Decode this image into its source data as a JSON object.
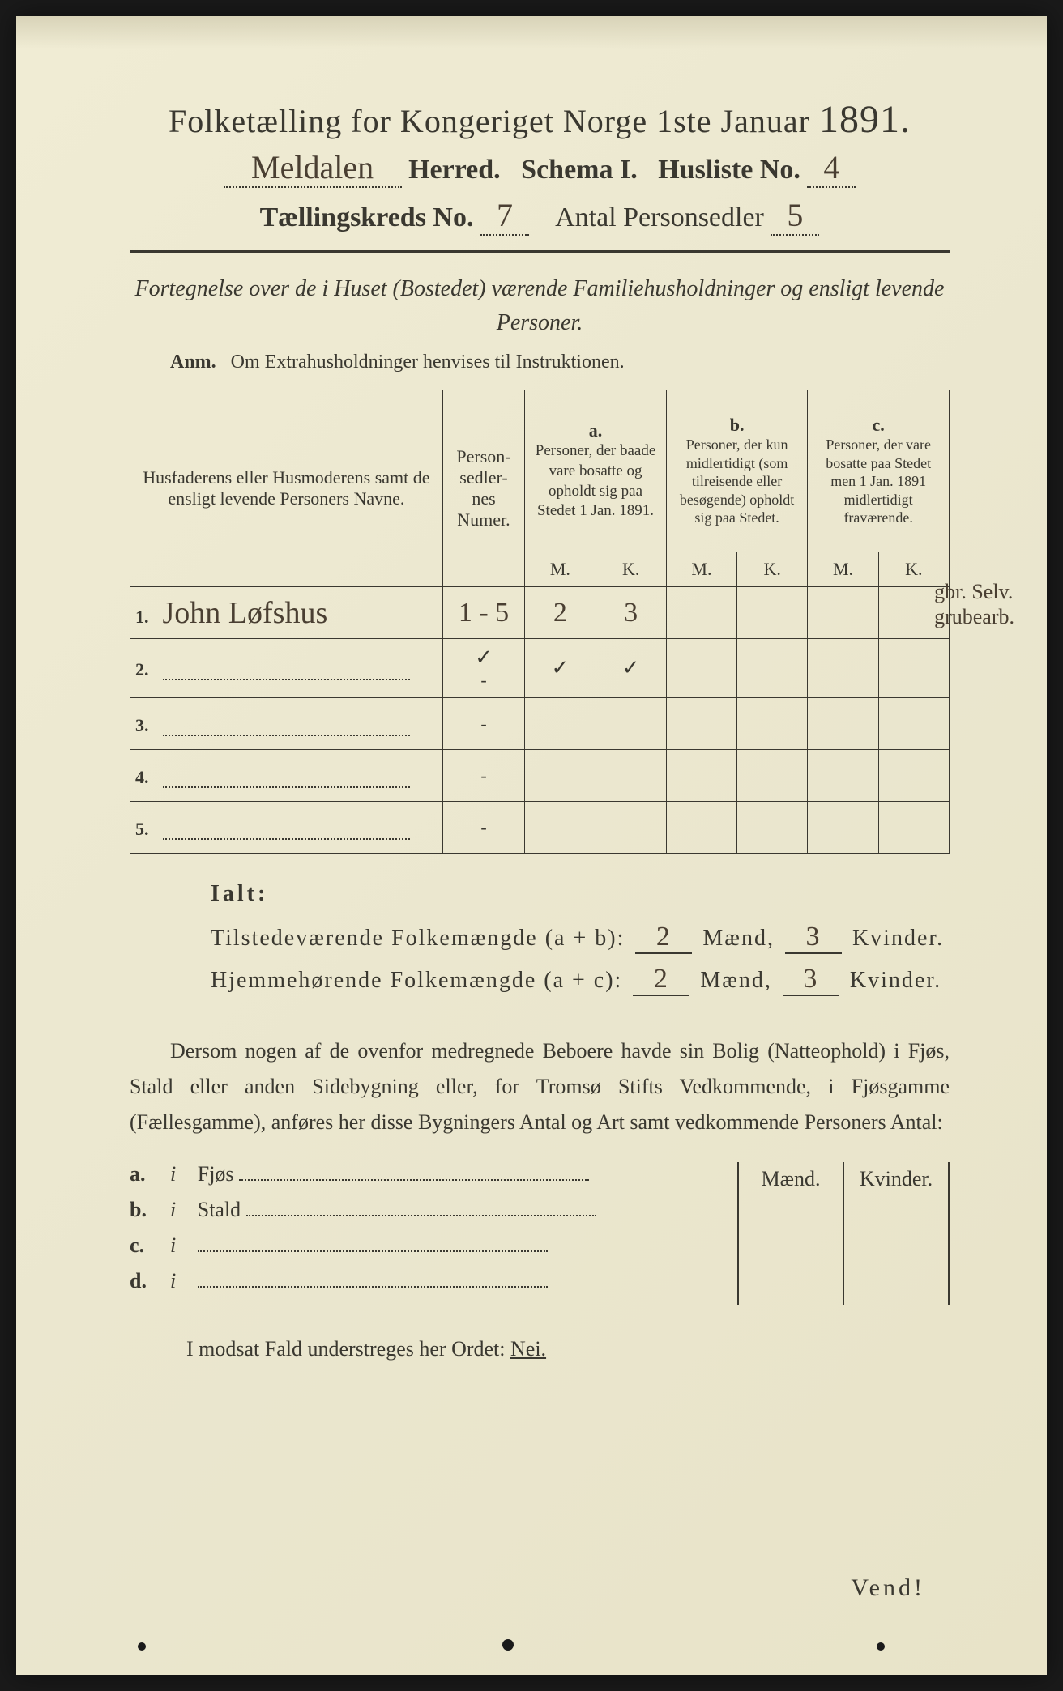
{
  "header": {
    "title_prefix": "Folketælling for Kongeriget Norge 1ste Januar",
    "year": "1891.",
    "herred_name": "Meldalen",
    "herred_label": "Herred.",
    "schema_label": "Schema I.",
    "husliste_label": "Husliste No.",
    "husliste_no": "4",
    "kreds_label": "Tællingskreds No.",
    "kreds_no": "7",
    "personsedler_label": "Antal Personsedler",
    "personsedler_no": "5"
  },
  "subtitle": "Fortegnelse over de i Huset (Bostedet) værende Familiehusholdninger og ensligt levende Personer.",
  "anm_label": "Anm.",
  "anm_text": "Om Extrahusholdninger henvises til Instruktionen.",
  "table": {
    "col_name": "Husfaderens eller Husmoderens samt de ensligt levende Personers Navne.",
    "col_num": "Person-sedler-nes Numer.",
    "col_a_label": "a.",
    "col_a": "Personer, der baade vare bosatte og opholdt sig paa Stedet 1 Jan. 1891.",
    "col_b_label": "b.",
    "col_b": "Personer, der kun midlertidigt (som tilreisende eller besøgende) opholdt sig paa Stedet.",
    "col_c_label": "c.",
    "col_c": "Personer, der vare bosatte paa Stedet men 1 Jan. 1891 midlertidigt fraværende.",
    "m": "M.",
    "k": "K.",
    "rows": [
      {
        "n": "1.",
        "name": "John Løfshus",
        "num": "1 - 5",
        "am": "2",
        "ak": "3",
        "bm": "",
        "bk": "",
        "cm": "",
        "ck": ""
      },
      {
        "n": "2.",
        "name": "",
        "num": "-",
        "am": "✓",
        "ak": "✓",
        "bm": "",
        "bk": "",
        "cm": "",
        "ck": ""
      },
      {
        "n": "3.",
        "name": "",
        "num": "-",
        "am": "",
        "ak": "",
        "bm": "",
        "bk": "",
        "cm": "",
        "ck": ""
      },
      {
        "n": "4.",
        "name": "",
        "num": "-",
        "am": "",
        "ak": "",
        "bm": "",
        "bk": "",
        "cm": "",
        "ck": ""
      },
      {
        "n": "5.",
        "name": "",
        "num": "-",
        "am": "",
        "ak": "",
        "bm": "",
        "bk": "",
        "cm": "",
        "ck": ""
      }
    ],
    "row2_num_check": "✓",
    "margin_note_1": "gbr. Selv.",
    "margin_note_2": "grubearb."
  },
  "totals": {
    "ialt": "Ialt:",
    "present_label": "Tilstedeværende Folkemængde (a + b):",
    "resident_label": "Hjemmehørende Folkemængde (a + c):",
    "maend": "Mænd,",
    "kvinder": "Kvinder.",
    "present_m": "2",
    "present_k": "3",
    "resident_m": "2",
    "resident_k": "3"
  },
  "paragraph": "Dersom nogen af de ovenfor medregnede Beboere havde sin Bolig (Natteophold) i Fjøs, Stald eller anden Sidebygning eller, for Tromsø Stifts Vedkommende, i Fjøsgamme (Fællesgamme), anføres her disse Bygningers Antal og Art samt vedkommende Personers Antal:",
  "buildings": {
    "maend": "Mænd.",
    "kvinder": "Kvinder.",
    "rows": [
      {
        "lab": "a.",
        "i": "i",
        "name": "Fjøs"
      },
      {
        "lab": "b.",
        "i": "i",
        "name": "Stald"
      },
      {
        "lab": "c.",
        "i": "i",
        "name": ""
      },
      {
        "lab": "d.",
        "i": "i",
        "name": ""
      }
    ]
  },
  "nei_line_prefix": "I modsat Fald understreges her Ordet:",
  "nei": "Nei.",
  "vend": "Vend!",
  "colors": {
    "paper": "#ebe7cf",
    "ink": "#3a3830",
    "handwriting": "#4a3f32"
  }
}
